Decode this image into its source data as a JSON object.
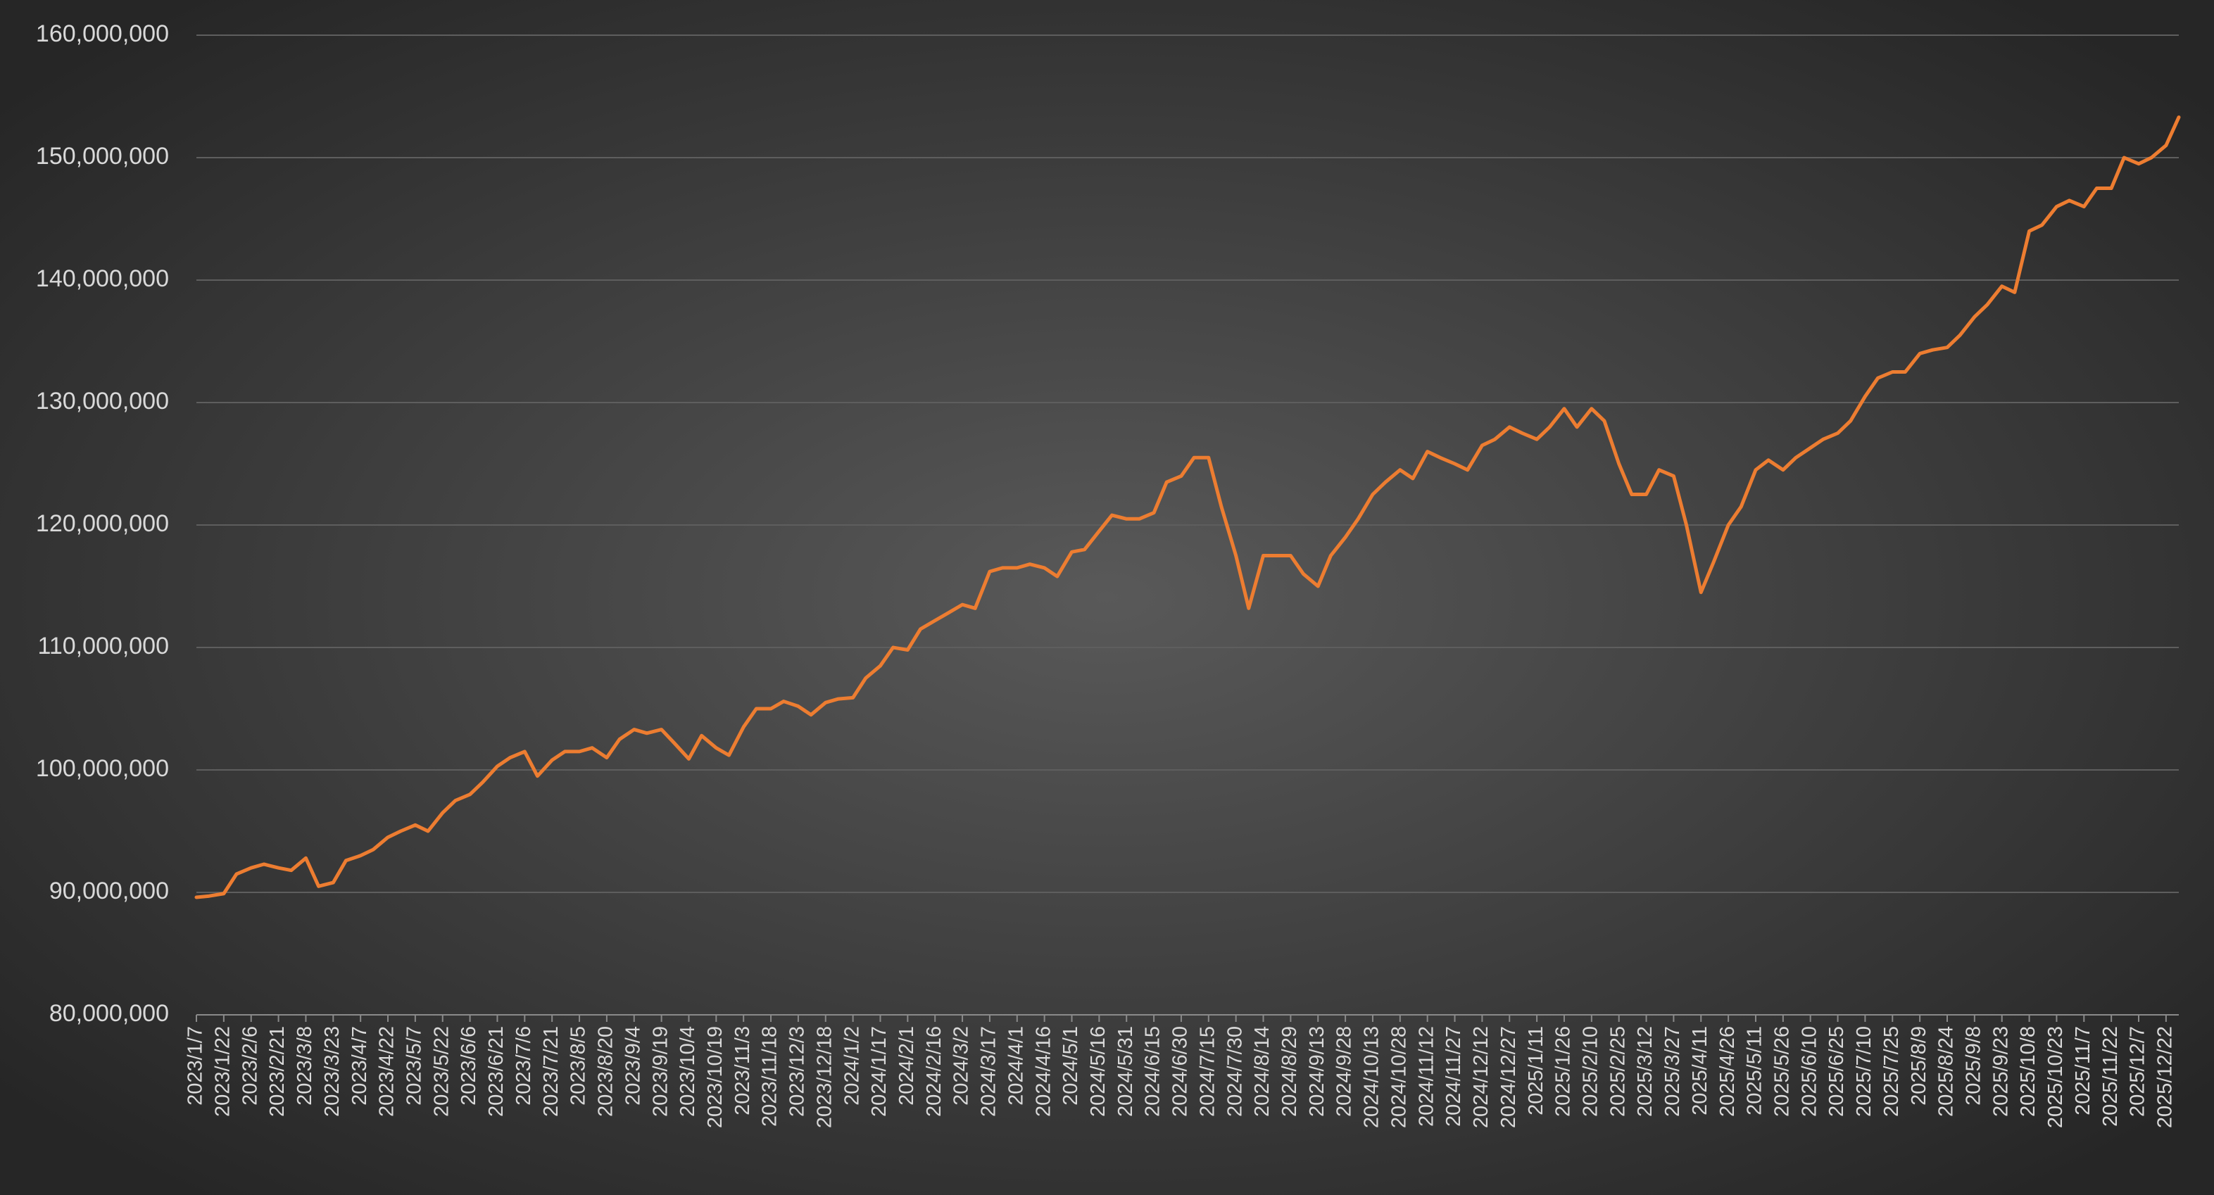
{
  "chart_data": {
    "type": "line",
    "color": "#ed7d31",
    "grid": true,
    "x": [
      "2023/1/7",
      "2023/1/14",
      "2023/1/22",
      "2023/1/29",
      "2023/2/6",
      "2023/2/13",
      "2023/2/21",
      "2023/2/28",
      "2023/3/8",
      "2023/3/15",
      "2023/3/23",
      "2023/3/30",
      "2023/4/7",
      "2023/4/14",
      "2023/4/22",
      "2023/4/29",
      "2023/5/7",
      "2023/5/14",
      "2023/5/22",
      "2023/5/29",
      "2023/6/6",
      "2023/6/13",
      "2023/6/21",
      "2023/6/28",
      "2023/7/6",
      "2023/7/13",
      "2023/7/21",
      "2023/7/28",
      "2023/8/5",
      "2023/8/12",
      "2023/8/20",
      "2023/8/27",
      "2023/9/4",
      "2023/9/11",
      "2023/9/19",
      "2023/9/26",
      "2023/10/4",
      "2023/10/11",
      "2023/10/19",
      "2023/10/26",
      "2023/11/3",
      "2023/11/10",
      "2023/11/18",
      "2023/11/25",
      "2023/12/3",
      "2023/12/10",
      "2023/12/18",
      "2023/12/25",
      "2024/1/2",
      "2024/1/9",
      "2024/1/17",
      "2024/1/24",
      "2024/2/1",
      "2024/2/8",
      "2024/2/16",
      "2024/2/23",
      "2024/3/2",
      "2024/3/9",
      "2024/3/17",
      "2024/3/24",
      "2024/4/1",
      "2024/4/8",
      "2024/4/16",
      "2024/4/23",
      "2024/5/1",
      "2024/5/8",
      "2024/5/16",
      "2024/5/23",
      "2024/5/31",
      "2024/6/7",
      "2024/6/15",
      "2024/6/22",
      "2024/6/30",
      "2024/7/7",
      "2024/7/15",
      "2024/7/22",
      "2024/7/30",
      "2024/8/6",
      "2024/8/14",
      "2024/8/21",
      "2024/8/29",
      "2024/9/5",
      "2024/9/13",
      "2024/9/20",
      "2024/9/28",
      "2024/10/5",
      "2024/10/13",
      "2024/10/20",
      "2024/10/28",
      "2024/11/4",
      "2024/11/12",
      "2024/11/19",
      "2024/11/27",
      "2024/12/4",
      "2024/12/12",
      "2024/12/19",
      "2024/12/27",
      "2025/1/3",
      "2025/1/11",
      "2025/1/18",
      "2025/1/26",
      "2025/2/2",
      "2025/2/10",
      "2025/2/17",
      "2025/2/25",
      "2025/3/4",
      "2025/3/12",
      "2025/3/19",
      "2025/3/27",
      "2025/4/3",
      "2025/4/11",
      "2025/4/18",
      "2025/4/26",
      "2025/5/3",
      "2025/5/11",
      "2025/5/18",
      "2025/5/26",
      "2025/6/2",
      "2025/6/10",
      "2025/6/17",
      "2025/6/25",
      "2025/7/2",
      "2025/7/10",
      "2025/7/17",
      "2025/7/25",
      "2025/8/1",
      "2025/8/9",
      "2025/8/16",
      "2025/8/24",
      "2025/8/31",
      "2025/9/8",
      "2025/9/15",
      "2025/9/23",
      "2025/9/30",
      "2025/10/8",
      "2025/10/15",
      "2025/10/23",
      "2025/10/30",
      "2025/11/7",
      "2025/11/14",
      "2025/11/22",
      "2025/11/29",
      "2025/12/7",
      "2025/12/14",
      "2025/12/22",
      "2025/12/29"
    ],
    "values": [
      89600000,
      89700000,
      89900000,
      91500000,
      92000000,
      92300000,
      92000000,
      91800000,
      92800000,
      90500000,
      90800000,
      92600000,
      93000000,
      93500000,
      94500000,
      95000000,
      95500000,
      95000000,
      96500000,
      97500000,
      98000000,
      99000000,
      100300000,
      101000000,
      101500000,
      99500000,
      100800000,
      101500000,
      101500000,
      101800000,
      101000000,
      102500000,
      103300000,
      103000000,
      103300000,
      102200000,
      100900000,
      102800000,
      101800000,
      101200000,
      103500000,
      105000000,
      105000000,
      105600000,
      105200000,
      104500000,
      105500000,
      105800000,
      105900000,
      107500000,
      108500000,
      110000000,
      109800000,
      111500000,
      112200000,
      112800000,
      113500000,
      113200000,
      116200000,
      116500000,
      116500000,
      116800000,
      116500000,
      115800000,
      117800000,
      118000000,
      119500000,
      120800000,
      120500000,
      120500000,
      121000000,
      123500000,
      124000000,
      125500000,
      125500000,
      121500000,
      117500000,
      113200000,
      117500000,
      117500000,
      117500000,
      116000000,
      115000000,
      117500000,
      119000000,
      120500000,
      122500000,
      123500000,
      124500000,
      123800000,
      126000000,
      125500000,
      125000000,
      124500000,
      126500000,
      127000000,
      128000000,
      127500000,
      127000000,
      128000000,
      129500000,
      128000000,
      129500000,
      128500000,
      125000000,
      122500000,
      122500000,
      124500000,
      124000000,
      120000000,
      114500000,
      117000000,
      120000000,
      121500000,
      124500000,
      125300000,
      124500000,
      125500000,
      126300000,
      127000000,
      127500000,
      128500000,
      130500000,
      132000000,
      132500000,
      132500000,
      134000000,
      134300000,
      134500000,
      135500000,
      137000000,
      138000000,
      139500000,
      139000000,
      144000000,
      144500000,
      146000000,
      146500000,
      146000000,
      147500000,
      147500000,
      150000000,
      149500000,
      150000000,
      151000000,
      153300000
    ],
    "xlim": [
      "2023/1/7",
      "2025/12/29"
    ],
    "xticks": [
      "2023/1/7",
      "2023/1/22",
      "2023/2/6",
      "2023/2/21",
      "2023/3/8",
      "2023/3/23",
      "2023/4/7",
      "2023/4/22",
      "2023/5/7",
      "2023/5/22",
      "2023/6/6",
      "2023/6/21",
      "2023/7/6",
      "2023/7/21",
      "2023/8/5",
      "2023/8/20",
      "2023/9/4",
      "2023/9/19",
      "2023/10/4",
      "2023/10/19",
      "2023/11/3",
      "2023/11/18",
      "2023/12/3",
      "2023/12/18",
      "2024/1/2",
      "2024/1/17",
      "2024/2/1",
      "2024/2/16",
      "2024/3/2",
      "2024/3/17",
      "2024/4/1",
      "2024/4/16",
      "2024/5/1",
      "2024/5/16",
      "2024/5/31",
      "2024/6/15",
      "2024/6/30",
      "2024/7/15",
      "2024/7/30",
      "2024/8/14",
      "2024/8/29",
      "2024/9/13",
      "2024/9/28",
      "2024/10/13",
      "2024/10/28",
      "2024/11/12",
      "2024/11/27",
      "2024/12/12",
      "2024/12/27",
      "2025/1/11",
      "2025/1/26",
      "2025/2/10",
      "2025/2/25",
      "2025/3/12",
      "2025/3/27",
      "2025/4/11",
      "2025/4/26",
      "2025/5/11",
      "2025/5/26",
      "2025/6/10",
      "2025/6/25",
      "2025/7/10",
      "2025/7/25",
      "2025/8/9",
      "2025/8/24",
      "2025/9/8",
      "2025/9/23",
      "2025/10/8",
      "2025/10/23",
      "2025/11/7",
      "2025/11/22",
      "2025/12/7",
      "2025/12/22"
    ],
    "ylim": [
      80000000,
      160000000
    ],
    "yticks": [
      {
        "value": 80000000,
        "label": "80,000,000"
      },
      {
        "value": 90000000,
        "label": "90,000,000"
      },
      {
        "value": 100000000,
        "label": "100,000,000"
      },
      {
        "value": 110000000,
        "label": "110,000,000"
      },
      {
        "value": 120000000,
        "label": "120,000,000"
      },
      {
        "value": 130000000,
        "label": "130,000,000"
      },
      {
        "value": 140000000,
        "label": "140,000,000"
      },
      {
        "value": 150000000,
        "label": "150,000,000"
      },
      {
        "value": 160000000,
        "label": "160,000,000"
      }
    ]
  }
}
